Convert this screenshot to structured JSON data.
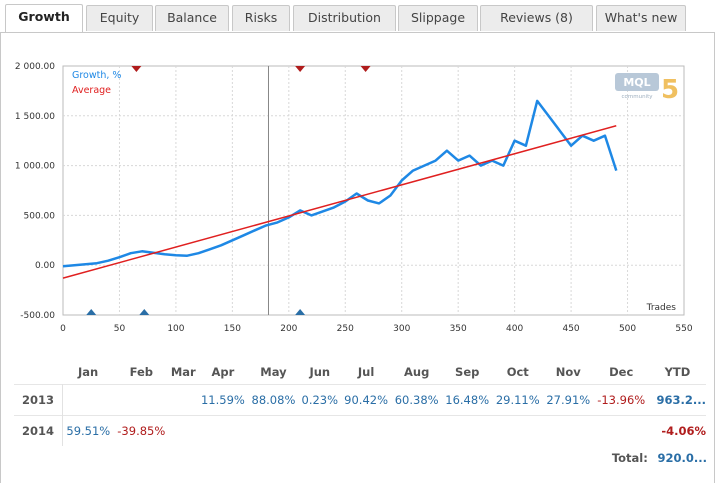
{
  "tabs": [
    {
      "label": "Growth",
      "active": true
    },
    {
      "label": "Equity",
      "active": false
    },
    {
      "label": "Balance",
      "active": false
    },
    {
      "label": "Risks",
      "active": false
    },
    {
      "label": "Distribution",
      "active": false
    },
    {
      "label": "Slippage",
      "active": false
    },
    {
      "label": "Reviews (8)",
      "active": false
    },
    {
      "label": "What's new",
      "active": false
    }
  ],
  "logo": {
    "text": "MQL",
    "digit": "5",
    "sub": "community"
  },
  "colors": {
    "growth": "#1e88e5",
    "average": "#e02020",
    "marker_red": "#b01c1c",
    "marker_blue": "#2a6ea6"
  },
  "chart_data": {
    "type": "line",
    "xlabel": "Trades",
    "xlim": [
      0,
      550
    ],
    "ylim": [
      -500,
      2000
    ],
    "x_ticks": [
      0,
      50,
      100,
      150,
      200,
      250,
      300,
      350,
      400,
      450,
      500,
      550
    ],
    "y_ticks": [
      "-500.00",
      "0.00",
      "500.00",
      "1 000.00",
      "1 500.00",
      "2 000.00"
    ],
    "grid": true,
    "legend_placement": "top-left",
    "series": [
      {
        "name": "Growth, %",
        "x": [
          0,
          10,
          20,
          30,
          40,
          50,
          60,
          70,
          80,
          90,
          100,
          110,
          120,
          130,
          140,
          150,
          160,
          170,
          180,
          190,
          200,
          210,
          220,
          230,
          240,
          250,
          260,
          270,
          280,
          290,
          300,
          310,
          320,
          330,
          340,
          350,
          360,
          370,
          380,
          390,
          400,
          410,
          420,
          430,
          440,
          450,
          460,
          470,
          480,
          490
        ],
        "y": [
          -10,
          0,
          10,
          20,
          45,
          80,
          120,
          140,
          125,
          110,
          100,
          95,
          120,
          160,
          200,
          250,
          300,
          350,
          400,
          430,
          480,
          550,
          500,
          540,
          580,
          640,
          720,
          650,
          620,
          700,
          850,
          950,
          1000,
          1050,
          1150,
          1050,
          1100,
          1000,
          1050,
          1000,
          1250,
          1200,
          1650,
          1500,
          1350,
          1200,
          1300,
          1250,
          1300,
          950
        ]
      },
      {
        "name": "Average",
        "x": [
          0,
          490
        ],
        "y": [
          -130,
          1400
        ]
      }
    ],
    "vertical_marker_x": 182,
    "top_markers_x": [
      65,
      210,
      268
    ],
    "bottom_markers_x": [
      25,
      72,
      210
    ]
  },
  "table": {
    "months": [
      "Jan",
      "Feb",
      "Mar",
      "Apr",
      "May",
      "Jun",
      "Jul",
      "Aug",
      "Sep",
      "Oct",
      "Nov",
      "Dec",
      "YTD"
    ],
    "rows": [
      {
        "year": "2013",
        "values": [
          "",
          "",
          "",
          "11.59%",
          "88.08%",
          "0.23%",
          "90.42%",
          "60.38%",
          "16.48%",
          "29.11%",
          "27.91%",
          "-13.96%",
          "963.2..."
        ]
      },
      {
        "year": "2014",
        "values": [
          "59.51%",
          "-39.85%",
          "",
          "",
          "",
          "",
          "",
          "",
          "",
          "",
          "",
          "",
          "-4.06%"
        ]
      }
    ],
    "total_label": "Total:",
    "total_value": "920.0..."
  }
}
